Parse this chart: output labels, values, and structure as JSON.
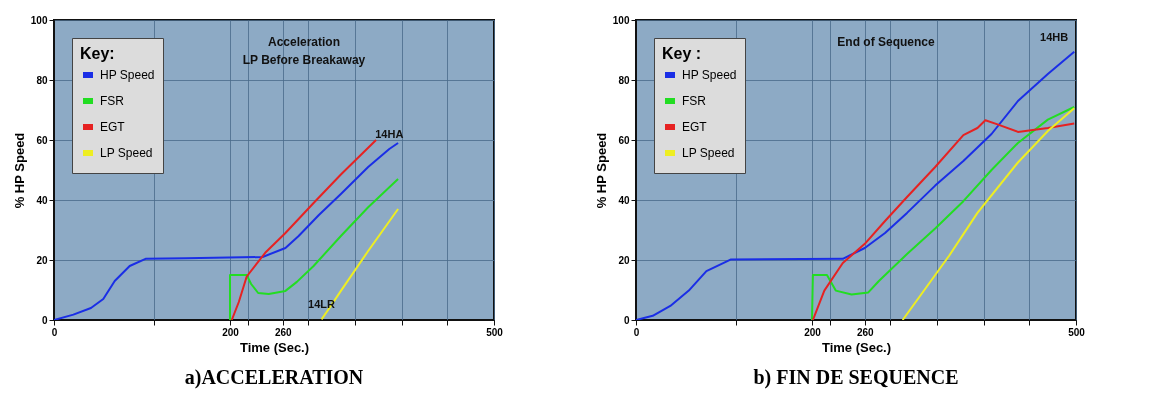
{
  "chart_data": [
    {
      "type": "line",
      "title": "a)ACCELERATION",
      "xlabel": "Time (Sec.)",
      "ylabel": "% HP Speed",
      "legend_title": "Key:",
      "legend": "top left",
      "grid": true,
      "xlim": [
        0,
        500
      ],
      "xticks": [
        0,
        {
          "value": 114,
          "label": null
        },
        200,
        {
          "value": 221,
          "label": null
        },
        260,
        {
          "value": 289,
          "label": null
        },
        {
          "value": 342,
          "label": null
        },
        {
          "value": 395,
          "label": null
        },
        {
          "value": 447,
          "label": null
        },
        500
      ],
      "ylim": [
        0,
        100
      ],
      "yticks": [
        0,
        20,
        40,
        60,
        80,
        100
      ],
      "series": [
        {
          "name": "HP Speed",
          "color": "#1a2ee6",
          "x": [
            0,
            22,
            42,
            56,
            69,
            86,
            104,
            150,
            237,
            263,
            278,
            301,
            326,
            357,
            381,
            391
          ],
          "values": [
            0,
            1.8,
            4,
            7,
            13,
            18,
            20.4,
            20.6,
            21,
            24,
            28,
            35,
            42,
            51,
            57,
            59
          ]
        },
        {
          "name": "FSR",
          "color": "#22dd22",
          "x": [
            200,
            200,
            219,
            224,
            232,
            244,
            263,
            276,
            295,
            326,
            357,
            391
          ],
          "values": [
            0,
            15,
            15,
            12,
            9,
            8.7,
            9.7,
            12.7,
            18,
            28,
            37.6,
            47
          ]
        },
        {
          "name": "EGT",
          "color": "#e62222",
          "x": [
            202,
            210,
            219,
            240,
            263,
            295,
            326,
            366
          ],
          "values": [
            0,
            6,
            14.5,
            22.4,
            29,
            39,
            48.5,
            60
          ]
        },
        {
          "name": "LP Speed",
          "color": "#eeee22",
          "x": [
            304,
            313,
            326,
            357,
            391
          ],
          "values": [
            0.2,
            4,
            9.7,
            23,
            37
          ]
        }
      ],
      "annotations": [
        {
          "text": "14HA",
          "x": 381,
          "y": 57
        },
        {
          "text": "14LR",
          "x": 304,
          "y": 0.2
        },
        "Acceleration",
        "LP Before Breakaway"
      ]
    },
    {
      "type": "line",
      "title": "b) FIN DE SEQUENCE",
      "xlabel": "Time (Sec.)",
      "ylabel": "% HP Speed",
      "legend_title": "Key :",
      "legend": "top left",
      "grid": true,
      "xlim": [
        0,
        500
      ],
      "xticks": [
        0,
        {
          "value": 114,
          "label": null
        },
        200,
        {
          "value": 221,
          "label": null
        },
        260,
        {
          "value": 289,
          "label": null
        },
        {
          "value": 342,
          "label": null
        },
        {
          "value": 395,
          "label": null
        },
        {
          "value": 447,
          "label": null
        },
        500
      ],
      "ylim": [
        0,
        100
      ],
      "yticks": [
        0,
        20,
        40,
        60,
        80,
        100
      ],
      "series": [
        {
          "name": "HP Speed",
          "color": "#1a2ee6",
          "x": [
            0,
            19,
            39,
            60,
            80,
            108,
            235,
            260,
            283,
            308,
            340,
            372,
            404,
            434,
            468,
            498
          ],
          "values": [
            0,
            1.4,
            4.7,
            9.8,
            16.3,
            20.2,
            20.4,
            24,
            29,
            35.7,
            44.8,
            53,
            62,
            73,
            82,
            89.4
          ]
        },
        {
          "name": "FSR",
          "color": "#22dd22",
          "x": [
            200,
            201,
            217,
            227,
            245,
            264,
            276,
            308,
            340,
            372,
            404,
            434,
            468,
            498
          ],
          "values": [
            0,
            15,
            15,
            9.8,
            8.5,
            9.2,
            13,
            22,
            30.5,
            39.6,
            50,
            59,
            66.8,
            71
          ]
        },
        {
          "name": "EGT",
          "color": "#e62222",
          "x": [
            201,
            214,
            235,
            260,
            283,
            308,
            340,
            372,
            388,
            397,
            410,
            434,
            468,
            498
          ],
          "values": [
            0,
            9.8,
            19,
            25.4,
            33,
            41,
            51,
            61.6,
            64,
            66.6,
            65.3,
            62.7,
            64,
            65.5
          ]
        },
        {
          "name": "LP Speed",
          "color": "#eeee22",
          "x": [
            303,
            324,
            356,
            388,
            434,
            468,
            498
          ],
          "values": [
            0,
            8.5,
            21.5,
            35.7,
            52.5,
            63,
            70.6
          ]
        }
      ],
      "annotations": [
        {
          "text": "14HB",
          "x": 498,
          "y": 89.4
        },
        "End of Sequence"
      ]
    }
  ]
}
